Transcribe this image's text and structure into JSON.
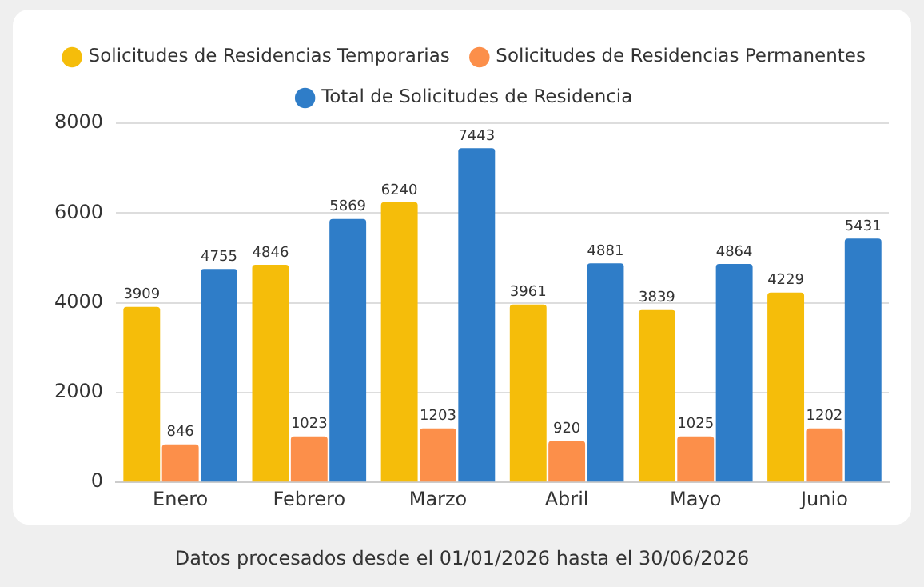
{
  "chart_data": {
    "type": "bar",
    "categories": [
      "Enero",
      "Febrero",
      "Marzo",
      "Abril",
      "Mayo",
      "Junio"
    ],
    "series": [
      {
        "name": "Solicitudes de Residencias Temporarias",
        "color": "#f5bd0a",
        "values": [
          3909,
          4846,
          6240,
          3961,
          3839,
          4229
        ]
      },
      {
        "name": "Solicitudes de Residencias Permanentes",
        "color": "#fc8f4a",
        "values": [
          846,
          1023,
          1203,
          920,
          1025,
          1202
        ]
      },
      {
        "name": "Total de Solicitudes de Residencia",
        "color": "#2f7dc8",
        "values": [
          4755,
          5869,
          7443,
          4881,
          4864,
          5431
        ]
      }
    ],
    "ylim": [
      0,
      8000
    ],
    "yticks": [
      0,
      2000,
      4000,
      6000,
      8000
    ],
    "grid": "y",
    "legend": "top",
    "data_labels": true,
    "annotations": [
      "Datos procesados desde el 01/01/2026 hasta el 30/06/2026"
    ]
  }
}
